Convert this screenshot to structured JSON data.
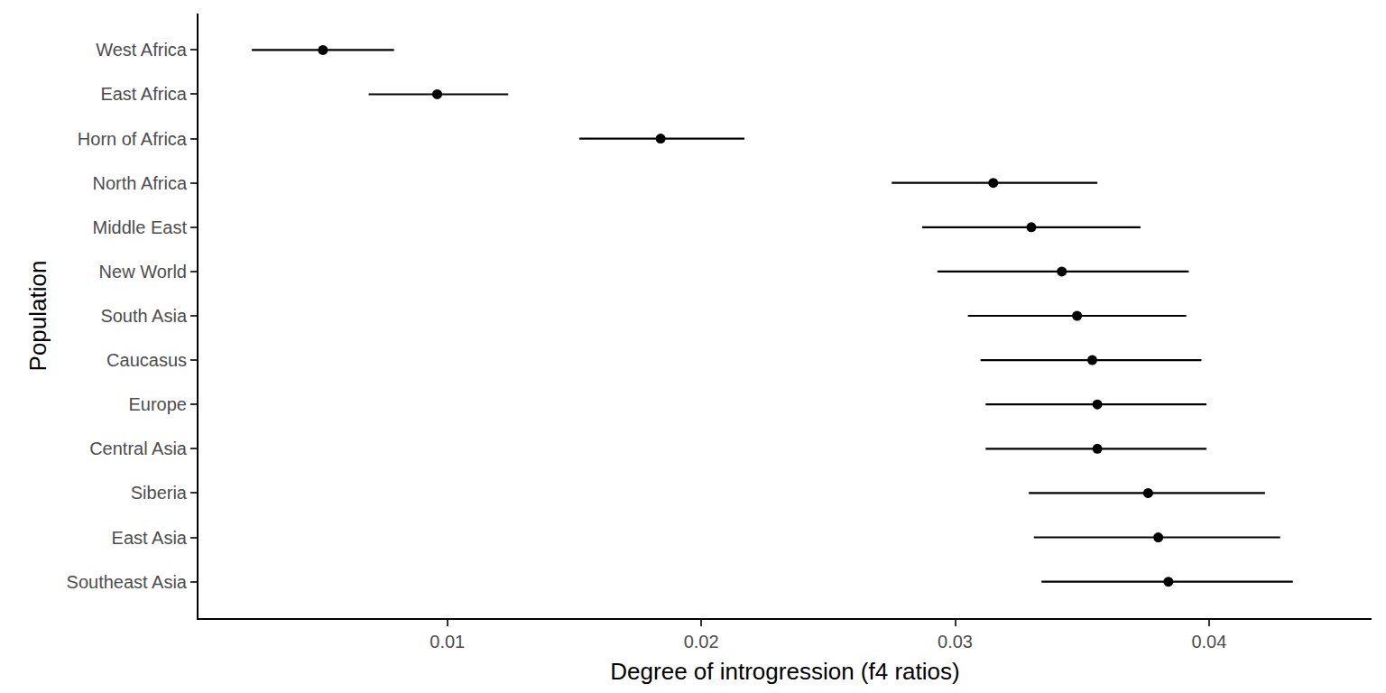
{
  "chart_data": {
    "type": "scatter",
    "orientation": "horizontal",
    "x_label": "Degree of introgression (f4 ratios)",
    "y_label": "Population",
    "categories": [
      "West Africa",
      "East Africa",
      "Horn of Africa",
      "North Africa",
      "Middle East",
      "New World",
      "South Asia",
      "Caucasus",
      "Europe",
      "Central Asia",
      "Siberia",
      "East Asia",
      "Southeast Asia"
    ],
    "values": [
      0.0051,
      0.0096,
      0.0184,
      0.0315,
      0.033,
      0.0342,
      0.0348,
      0.0354,
      0.0356,
      0.0356,
      0.0376,
      0.038,
      0.0384
    ],
    "error_low": [
      0.0023,
      0.0069,
      0.0152,
      0.0275,
      0.0287,
      0.0293,
      0.0305,
      0.031,
      0.0312,
      0.0312,
      0.0329,
      0.0331,
      0.0334
    ],
    "error_high": [
      0.0079,
      0.0124,
      0.0217,
      0.0356,
      0.0373,
      0.0392,
      0.0391,
      0.0397,
      0.0399,
      0.0399,
      0.0422,
      0.0428,
      0.0433
    ],
    "color": "#000000",
    "marker": "circle",
    "xlim": [
      0.0002,
      0.0464
    ],
    "xticks": [
      0.01,
      0.02,
      0.03,
      0.04
    ],
    "grid": false
  }
}
